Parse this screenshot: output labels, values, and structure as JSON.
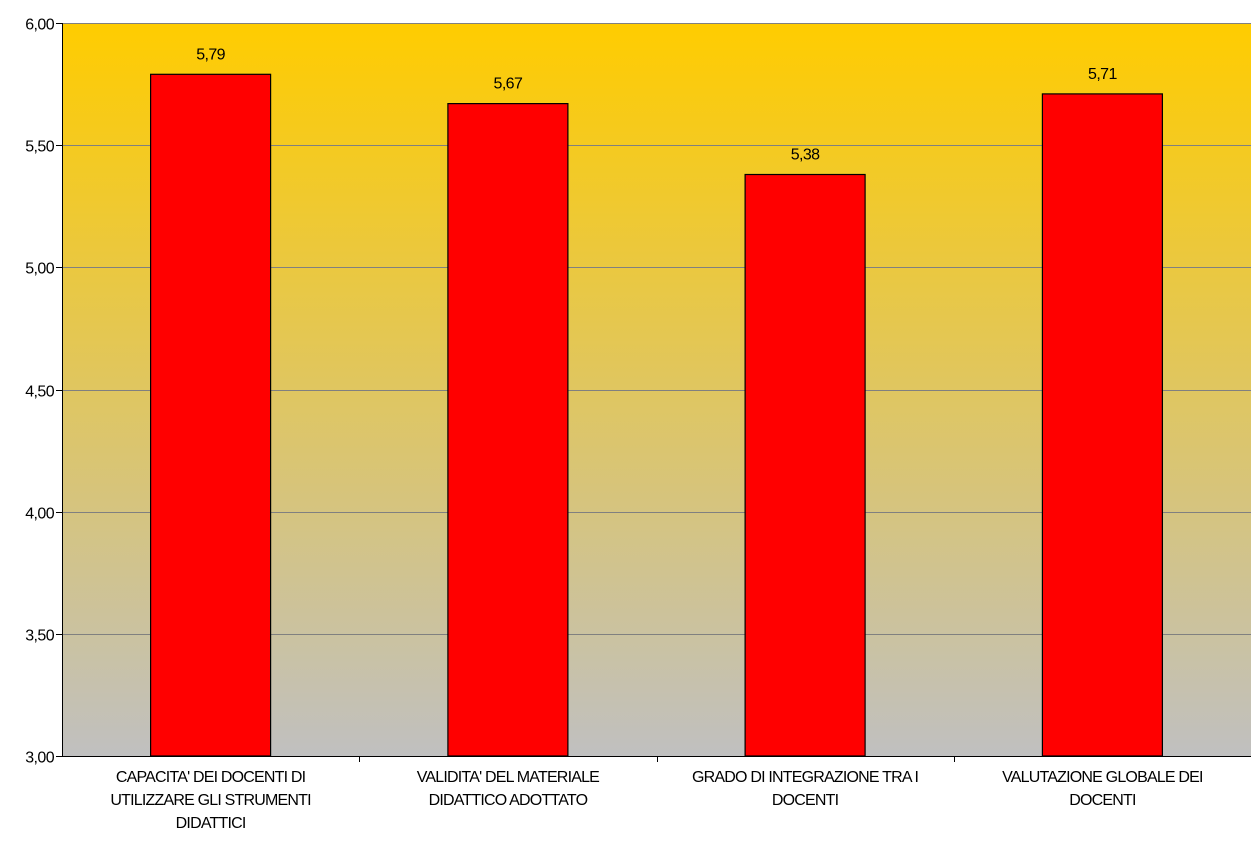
{
  "chart_data": {
    "type": "bar",
    "categories": [
      [
        "CAPACITA' DEI DOCENTI DI",
        "UTILIZZARE GLI STRUMENTI",
        "DIDATTICI"
      ],
      [
        "VALIDITA' DEL MATERIALE",
        "DIDATTICO ADOTTATO"
      ],
      [
        "GRADO DI INTEGRAZIONE TRA I",
        "DOCENTI"
      ],
      [
        "VALUTAZIONE GLOBALE DEI",
        "DOCENTI"
      ]
    ],
    "values": [
      5.79,
      5.67,
      5.38,
      5.71
    ],
    "value_labels": [
      "5,79",
      "5,67",
      "5,38",
      "5,71"
    ],
    "ylim": [
      3.0,
      6.0
    ],
    "yticks": [
      3.0,
      3.5,
      4.0,
      4.5,
      5.0,
      5.5,
      6.0
    ],
    "ytick_labels": [
      "3,00",
      "3,50",
      "4,00",
      "4,50",
      "5,00",
      "5,50",
      "6,00"
    ],
    "grid": true,
    "legend": "none",
    "title": "",
    "xlabel": "",
    "ylabel": "",
    "colors": {
      "bar_fill": "#ff0000",
      "bar_stroke": "#000000",
      "background_top": "#ffcc00",
      "background_bottom": "#c0c0c0",
      "gridline": "#808080"
    }
  }
}
